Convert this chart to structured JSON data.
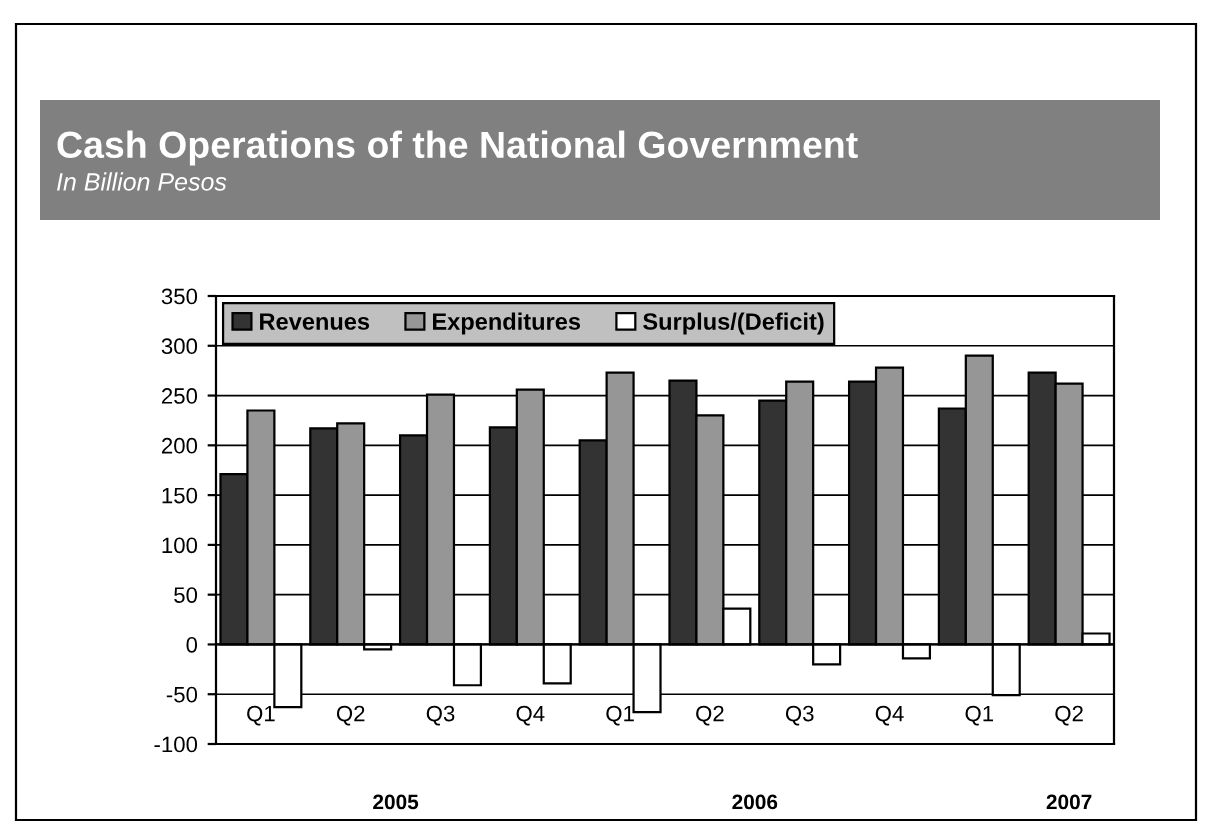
{
  "chart_data": {
    "type": "bar",
    "title": "Cash Operations of the National Government",
    "subtitle": "In Billion Pesos",
    "categories": [
      "Q1",
      "Q2",
      "Q3",
      "Q4",
      "Q1",
      "Q2",
      "Q3",
      "Q4",
      "Q1",
      "Q2"
    ],
    "series": [
      {
        "name": "Revenues",
        "color": "#333333",
        "values": [
          171,
          217,
          210,
          218,
          205,
          265,
          245,
          264,
          237,
          273
        ]
      },
      {
        "name": "Expenditures",
        "color": "#969696",
        "values": [
          235,
          222,
          251,
          256,
          273,
          230,
          264,
          278,
          290,
          262
        ]
      },
      {
        "name": "Surplus/(Deficit)",
        "color": "#ffffff",
        "values": [
          -63,
          -5,
          -41,
          -39,
          -68,
          36,
          -20,
          -14,
          -51,
          11
        ]
      }
    ],
    "annotations": [
      "2005",
      "2006",
      "2007"
    ],
    "ylim": [
      -100,
      350
    ],
    "yticks": [
      -100,
      -50,
      0,
      50,
      100,
      150,
      200,
      250,
      300,
      350
    ],
    "grid": "y",
    "legend": "top left"
  }
}
